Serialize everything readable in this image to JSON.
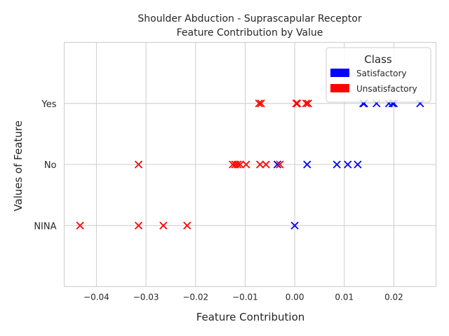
{
  "chart_data": {
    "type": "scatter",
    "title_line1": "Shoulder Abduction - Suprascapular Receptor",
    "title_line2": "Feature Contribution by Value",
    "xlabel": "Feature Contribution",
    "ylabel": "Values of Feature",
    "xlim": [
      -0.0465,
      0.0285
    ],
    "x_ticks": [
      -0.04,
      -0.03,
      -0.02,
      -0.01,
      0.0,
      0.01,
      0.02
    ],
    "x_tick_labels": [
      "−0.04",
      "−0.03",
      "−0.02",
      "−0.01",
      "0.00",
      "0.01",
      "0.02"
    ],
    "categories": [
      "NINA",
      "No",
      "Yes"
    ],
    "grid": true,
    "legend": {
      "title": "Class",
      "placement": "top-right",
      "entries": [
        {
          "label": "Satisfactory",
          "color": "#0000ff"
        },
        {
          "label": "Unsatisfactory",
          "color": "#ff0000"
        }
      ]
    },
    "series": [
      {
        "name": "Satisfactory",
        "color": "#0000ff",
        "marker": "x",
        "points": [
          {
            "x": 0.0138,
            "y": "Yes"
          },
          {
            "x": 0.014,
            "y": "Yes"
          },
          {
            "x": 0.0165,
            "y": "Yes"
          },
          {
            "x": 0.019,
            "y": "Yes"
          },
          {
            "x": 0.0197,
            "y": "Yes"
          },
          {
            "x": 0.02,
            "y": "Yes"
          },
          {
            "x": 0.0253,
            "y": "Yes"
          },
          {
            "x": -0.0035,
            "y": "No"
          },
          {
            "x": 0.0025,
            "y": "No"
          },
          {
            "x": 0.0085,
            "y": "No"
          },
          {
            "x": 0.0107,
            "y": "No"
          },
          {
            "x": 0.0127,
            "y": "No"
          },
          {
            "x": 0.0,
            "y": "NINA"
          }
        ]
      },
      {
        "name": "Unsatisfactory",
        "color": "#ff0000",
        "marker": "x",
        "points": [
          {
            "x": -0.0072,
            "y": "Yes"
          },
          {
            "x": -0.0068,
            "y": "Yes"
          },
          {
            "x": 0.0003,
            "y": "Yes"
          },
          {
            "x": 0.0005,
            "y": "Yes"
          },
          {
            "x": 0.0023,
            "y": "Yes"
          },
          {
            "x": 0.0027,
            "y": "Yes"
          },
          {
            "x": -0.0315,
            "y": "No"
          },
          {
            "x": -0.0125,
            "y": "No"
          },
          {
            "x": -0.012,
            "y": "No"
          },
          {
            "x": -0.0115,
            "y": "No"
          },
          {
            "x": -0.011,
            "y": "No"
          },
          {
            "x": -0.0098,
            "y": "No"
          },
          {
            "x": -0.007,
            "y": "No"
          },
          {
            "x": -0.0058,
            "y": "No"
          },
          {
            "x": -0.003,
            "y": "No"
          },
          {
            "x": -0.0433,
            "y": "NINA"
          },
          {
            "x": -0.0315,
            "y": "NINA"
          },
          {
            "x": -0.0265,
            "y": "NINA"
          },
          {
            "x": -0.0217,
            "y": "NINA"
          }
        ]
      }
    ]
  }
}
